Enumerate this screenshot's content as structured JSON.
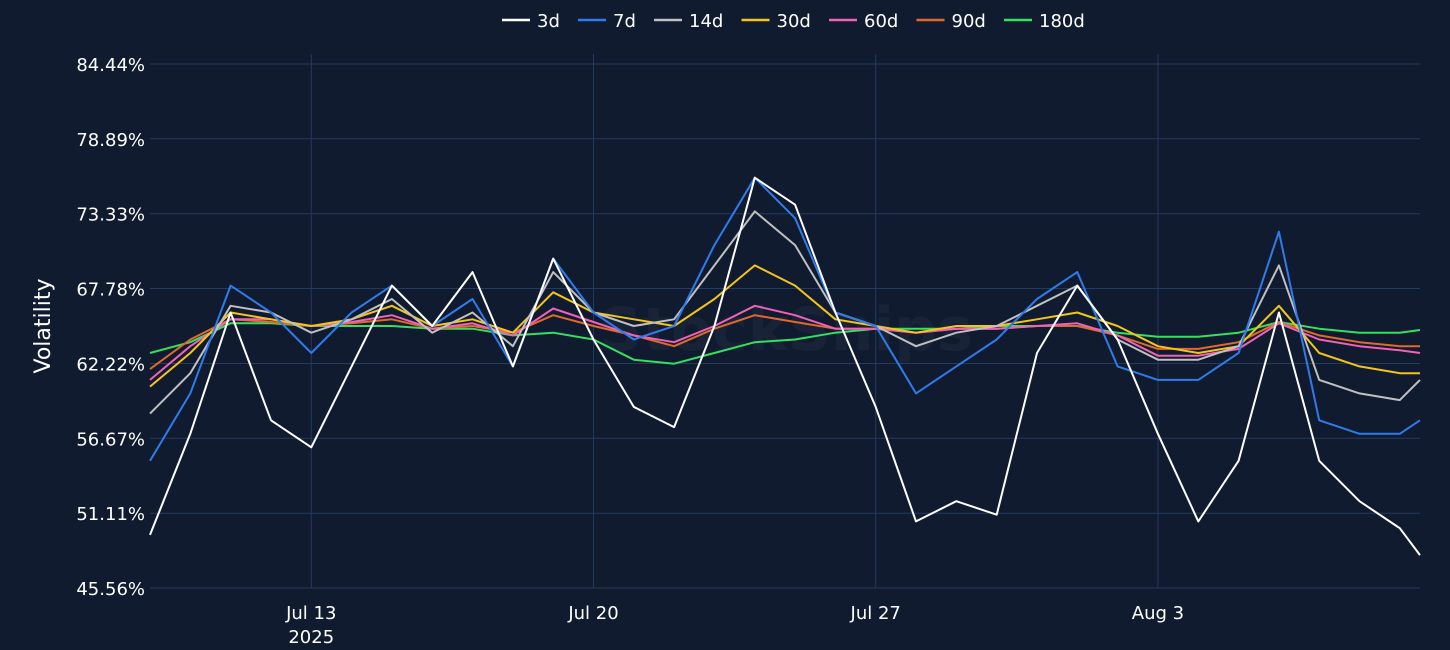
{
  "chart_data": {
    "type": "line",
    "ylabel": "Volatility",
    "watermark": "StockSnips",
    "y_ticks": [
      "45.56%",
      "51.11%",
      "56.67%",
      "62.22%",
      "67.78%",
      "73.33%",
      "78.89%",
      "84.44%"
    ],
    "ylim": [
      45.56,
      84.44
    ],
    "x_range": [
      "2025-07-09T00:00",
      "2025-08-09T12:00"
    ],
    "x_ticks": [
      {
        "date": "2025-07-13",
        "label": "Jul 13",
        "sublabel": "2025"
      },
      {
        "date": "2025-07-20",
        "label": "Jul 20",
        "sublabel": ""
      },
      {
        "date": "2025-07-27",
        "label": "Jul 27",
        "sublabel": ""
      },
      {
        "date": "2025-08-03",
        "label": "Aug 3",
        "sublabel": ""
      }
    ],
    "grid": true,
    "legend_position": "top-center",
    "x": [
      "2025-07-09T00:00",
      "2025-07-10T00:00",
      "2025-07-11T00:00",
      "2025-07-12T00:00",
      "2025-07-13T00:00",
      "2025-07-14T00:00",
      "2025-07-15T00:00",
      "2025-07-16T00:00",
      "2025-07-17T00:00",
      "2025-07-18T00:00",
      "2025-07-19T00:00",
      "2025-07-20T00:00",
      "2025-07-21T00:00",
      "2025-07-22T00:00",
      "2025-07-23T00:00",
      "2025-07-24T00:00",
      "2025-07-25T00:00",
      "2025-07-26T00:00",
      "2025-07-27T00:00",
      "2025-07-28T00:00",
      "2025-07-29T00:00",
      "2025-07-30T00:00",
      "2025-07-31T00:00",
      "2025-08-01T00:00",
      "2025-08-02T00:00",
      "2025-08-03T00:00",
      "2025-08-04T00:00",
      "2025-08-05T00:00",
      "2025-08-06T00:00",
      "2025-08-07T00:00",
      "2025-08-08T00:00",
      "2025-08-09T00:00",
      "2025-08-09T12:00"
    ],
    "series": [
      {
        "name": "3d",
        "color": "#ffffff",
        "values": [
          49.5,
          57.0,
          66.0,
          58.0,
          56.0,
          62.0,
          68.0,
          65.0,
          69.0,
          62.0,
          70.0,
          64.0,
          59.0,
          57.5,
          65.0,
          76.0,
          74.0,
          66.0,
          59.0,
          50.5,
          52.0,
          51.0,
          63.0,
          68.0,
          64.0,
          57.0,
          50.5,
          55.0,
          66.0,
          55.0,
          52.0,
          50.0,
          48.0
        ]
      },
      {
        "name": "7d",
        "color": "#2f7bea",
        "values": [
          55.0,
          60.0,
          68.0,
          66.0,
          63.0,
          66.0,
          68.0,
          65.0,
          67.0,
          62.0,
          70.0,
          66.0,
          64.0,
          65.0,
          71.0,
          76.0,
          73.0,
          66.0,
          65.0,
          60.0,
          62.0,
          64.0,
          67.0,
          69.0,
          62.0,
          61.0,
          61.0,
          63.0,
          72.0,
          58.0,
          57.0,
          57.0,
          58.0
        ]
      },
      {
        "name": "14d",
        "color": "#c0c0c0",
        "values": [
          58.5,
          61.5,
          66.5,
          66.0,
          64.5,
          65.5,
          67.0,
          64.5,
          66.0,
          63.5,
          69.0,
          66.0,
          65.0,
          65.5,
          69.5,
          73.5,
          71.0,
          66.0,
          65.0,
          63.5,
          64.5,
          65.0,
          66.5,
          68.0,
          64.0,
          62.5,
          62.5,
          63.5,
          69.5,
          61.0,
          60.0,
          59.5,
          61.0
        ]
      },
      {
        "name": "30d",
        "color": "#f3c519",
        "values": [
          60.5,
          63.0,
          66.0,
          65.5,
          65.0,
          65.5,
          66.5,
          65.0,
          65.5,
          64.5,
          67.5,
          66.0,
          65.5,
          65.0,
          67.0,
          69.5,
          68.0,
          65.5,
          65.0,
          64.5,
          65.0,
          65.0,
          65.5,
          66.0,
          65.0,
          63.5,
          63.0,
          63.5,
          66.5,
          63.0,
          62.0,
          61.5,
          61.5
        ]
      },
      {
        "name": "60d",
        "color": "#f062b7",
        "values": [
          61.0,
          63.5,
          65.5,
          65.5,
          65.0,
          65.3,
          65.8,
          64.8,
          65.2,
          64.3,
          66.3,
          65.3,
          64.3,
          63.8,
          65.0,
          66.5,
          65.8,
          64.8,
          64.8,
          64.5,
          64.8,
          64.8,
          65.0,
          65.2,
          64.3,
          62.8,
          62.8,
          63.3,
          65.2,
          64.0,
          63.5,
          63.2,
          63.0
        ]
      },
      {
        "name": "90d",
        "color": "#e06a2c",
        "values": [
          61.8,
          64.0,
          65.5,
          65.3,
          65.0,
          65.2,
          65.5,
          64.8,
          65.0,
          64.5,
          65.8,
          65.0,
          64.3,
          63.5,
          64.8,
          65.8,
          65.3,
          64.8,
          64.8,
          64.5,
          64.8,
          64.8,
          65.0,
          65.0,
          64.3,
          63.3,
          63.3,
          63.8,
          65.3,
          64.3,
          63.8,
          63.5,
          63.5
        ]
      },
      {
        "name": "180d",
        "color": "#34e05e",
        "values": [
          63.0,
          63.8,
          65.2,
          65.2,
          65.0,
          65.0,
          65.0,
          64.8,
          64.8,
          64.3,
          64.5,
          64.0,
          62.5,
          62.2,
          63.0,
          63.8,
          64.0,
          64.5,
          64.8,
          64.8,
          64.8,
          65.0,
          65.0,
          65.0,
          64.5,
          64.2,
          64.2,
          64.5,
          65.3,
          64.8,
          64.5,
          64.5,
          64.7
        ]
      }
    ]
  }
}
